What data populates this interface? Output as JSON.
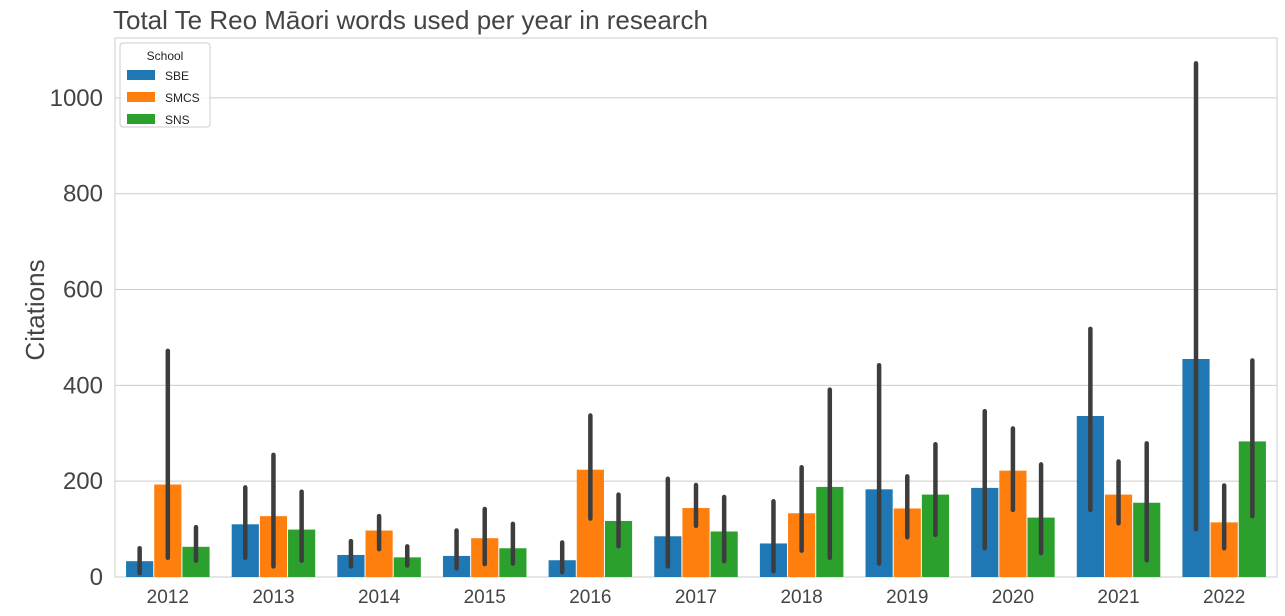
{
  "chart_data": {
    "type": "bar",
    "title": "Total Te Reo Māori words used per year in research",
    "xlabel": "",
    "ylabel": "Citations",
    "ylim": [
      0,
      1125
    ],
    "yticks": [
      0,
      200,
      400,
      600,
      800,
      1000
    ],
    "grid": "horizontal",
    "legend": {
      "title": "School",
      "placement": "top-left"
    },
    "categories": [
      "2012",
      "2013",
      "2014",
      "2015",
      "2016",
      "2017",
      "2018",
      "2019",
      "2020",
      "2021",
      "2022"
    ],
    "series": [
      {
        "name": "SBE",
        "color": "#1f77b4",
        "values": [
          33,
          110,
          46,
          44,
          35,
          85,
          70,
          183,
          186,
          336,
          455
        ],
        "error_low": [
          8,
          40,
          22,
          18,
          10,
          22,
          12,
          28,
          60,
          140,
          100
        ],
        "error_high": [
          60,
          187,
          75,
          97,
          72,
          205,
          158,
          442,
          346,
          518,
          1072
        ]
      },
      {
        "name": "SMCS",
        "color": "#ff7f0e",
        "values": [
          193,
          127,
          97,
          81,
          224,
          144,
          133,
          143,
          222,
          172,
          114
        ],
        "error_low": [
          40,
          22,
          58,
          27,
          122,
          107,
          55,
          83,
          140,
          112,
          60
        ],
        "error_high": [
          472,
          255,
          127,
          142,
          337,
          192,
          229,
          210,
          310,
          241,
          191
        ]
      },
      {
        "name": "SNS",
        "color": "#2ca02c",
        "values": [
          63,
          99,
          41,
          60,
          117,
          95,
          188,
          172,
          124,
          155,
          283
        ],
        "error_low": [
          34,
          34,
          24,
          28,
          64,
          33,
          40,
          88,
          50,
          35,
          127
        ],
        "error_high": [
          104,
          178,
          64,
          111,
          172,
          167,
          391,
          277,
          235,
          279,
          452
        ]
      }
    ]
  }
}
